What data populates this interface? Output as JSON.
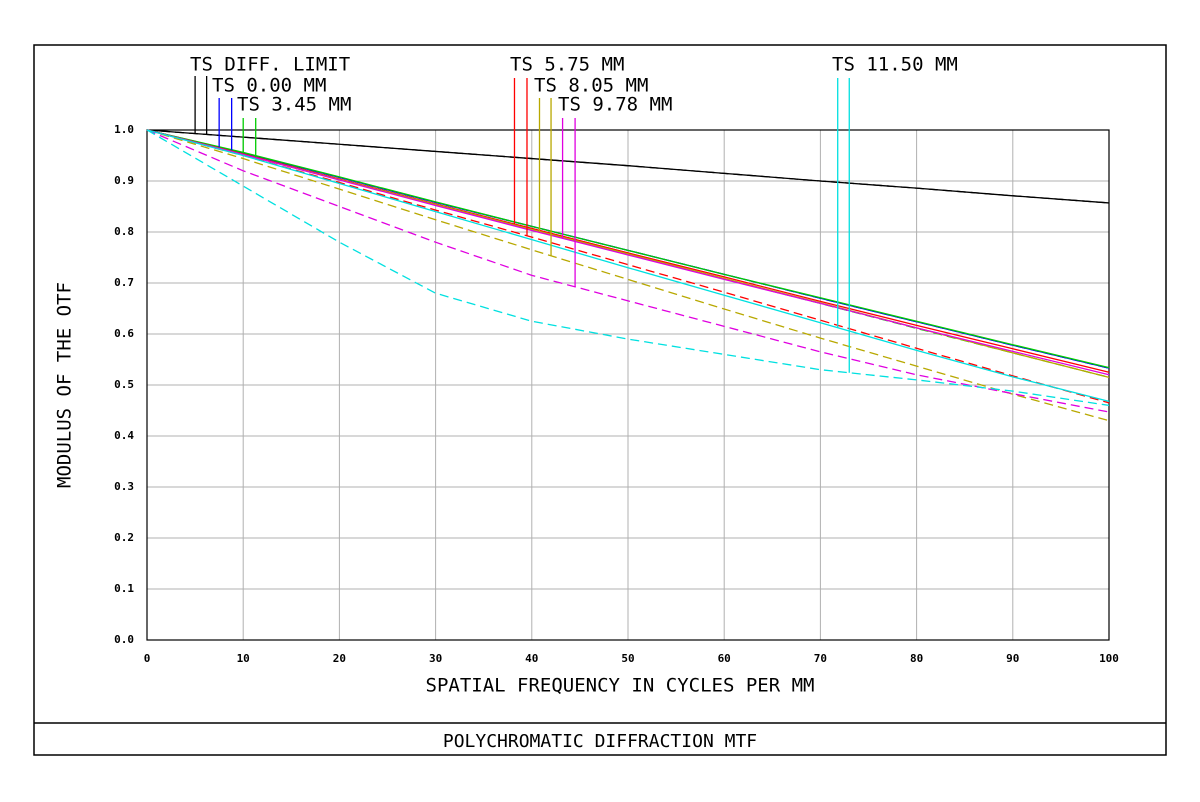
{
  "chart_data": {
    "type": "line",
    "title": "POLYCHROMATIC DIFFRACTION MTF",
    "x_label": "SPATIAL FREQUENCY IN CYCLES PER MM",
    "y_label": "MODULUS OF THE OTF",
    "x": [
      0,
      10,
      20,
      30,
      40,
      50,
      60,
      70,
      80,
      90,
      100
    ],
    "xlim": [
      0,
      100
    ],
    "xticks": [
      0,
      10,
      20,
      30,
      40,
      50,
      60,
      70,
      80,
      90,
      100
    ],
    "ylim": [
      0,
      1
    ],
    "yticks": [
      {
        "value": 0,
        "label": "0.0"
      },
      0.1,
      0.2,
      0.3,
      0.4,
      0.5,
      0.6,
      0.7,
      0.8,
      0.9,
      {
        "value": 1,
        "label": "1.0"
      }
    ],
    "grid": true,
    "series": [
      {
        "name": "TS DIFF. LIMIT",
        "color": "#000000",
        "values": [
          1.0,
          0.986,
          0.972,
          0.958,
          0.944,
          0.93,
          0.915,
          0.9,
          0.886,
          0.871,
          0.857
        ],
        "sagittal_values": [
          1.0,
          0.986,
          0.972,
          0.958,
          0.944,
          0.93,
          0.915,
          0.9,
          0.886,
          0.871,
          0.857
        ]
      },
      {
        "name": "TS 0.00 MM",
        "color": "#0000ff",
        "values": [
          1.0,
          0.955,
          0.907,
          0.858,
          0.811,
          0.764,
          0.717,
          0.67,
          0.624,
          0.578,
          0.533
        ],
        "sagittal_values": [
          1.0,
          0.955,
          0.907,
          0.858,
          0.811,
          0.764,
          0.717,
          0.67,
          0.624,
          0.578,
          0.533
        ]
      },
      {
        "name": "TS 3.45 MM",
        "color": "#00cc00",
        "values": [
          1.0,
          0.956,
          0.908,
          0.859,
          0.811,
          0.764,
          0.717,
          0.671,
          0.625,
          0.579,
          0.534
        ],
        "sagittal_values": [
          1.0,
          0.953,
          0.903,
          0.853,
          0.804,
          0.756,
          0.708,
          0.66,
          0.611,
          0.563,
          0.515
        ]
      },
      {
        "name": "TS 5.75 MM",
        "color": "#ff0000",
        "values": [
          1.0,
          0.953,
          0.904,
          0.855,
          0.807,
          0.759,
          0.712,
          0.664,
          0.617,
          0.571,
          0.525
        ],
        "sagittal_values": [
          1.0,
          0.95,
          0.897,
          0.843,
          0.79,
          0.736,
          0.682,
          0.627,
          0.572,
          0.518,
          0.465
        ]
      },
      {
        "name": "TS 8.05 MM",
        "color": "#b8a800",
        "values": [
          1.0,
          0.952,
          0.903,
          0.854,
          0.805,
          0.757,
          0.709,
          0.661,
          0.612,
          0.563,
          0.515
        ],
        "sagittal_values": [
          1.0,
          0.944,
          0.884,
          0.824,
          0.765,
          0.707,
          0.649,
          0.592,
          0.537,
          0.482,
          0.43
        ]
      },
      {
        "name": "TS 9.78 MM",
        "color": "#e000e0",
        "values": [
          1.0,
          0.952,
          0.902,
          0.852,
          0.803,
          0.755,
          0.707,
          0.66,
          0.612,
          0.566,
          0.52
        ],
        "sagittal_values": [
          1.0,
          0.92,
          0.85,
          0.78,
          0.715,
          0.665,
          0.615,
          0.565,
          0.52,
          0.483,
          0.447
        ]
      },
      {
        "name": "TS 11.50 MM",
        "color": "#00e0e0",
        "values": [
          1.0,
          0.95,
          0.895,
          0.84,
          0.785,
          0.73,
          0.676,
          0.622,
          0.568,
          0.516,
          0.468
        ],
        "sagittal_values": [
          1.0,
          0.89,
          0.78,
          0.68,
          0.625,
          0.59,
          0.56,
          0.53,
          0.51,
          0.488,
          0.46
        ]
      }
    ]
  }
}
